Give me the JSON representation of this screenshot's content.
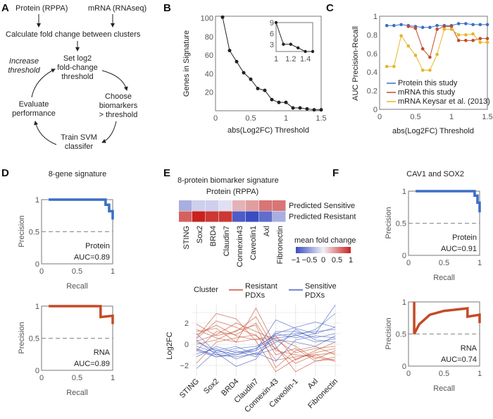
{
  "panel_labels": [
    "A",
    "B",
    "C",
    "D",
    "E",
    "F"
  ],
  "A": {
    "protein": "Protein (RPPA)",
    "mrna": "mRNA (RNAseq)",
    "calc": "Calculate fold change between clusters",
    "set1": "Set log2",
    "set2": "fold-change",
    "set3": "threshold",
    "choose1": "Choose",
    "choose2": "biomarkers",
    "choose3": "> threshold",
    "train1": "Train SVM",
    "train2": "classifer",
    "eval1": "Evaluate",
    "eval2": "performance",
    "inc1": "Increase",
    "inc2": "threshold"
  },
  "chart_data": [
    {
      "id": "B",
      "type": "line",
      "xlabel": "abs(Log2FC) Threshold",
      "ylabel": "Genes in Signature",
      "xlim": [
        0,
        1.5
      ],
      "ylim": [
        0,
        100
      ],
      "xticks": [
        "0",
        "0.5",
        "1",
        "1.5"
      ],
      "yticks": [
        "20",
        "40",
        "60",
        "80",
        "100"
      ],
      "x": [
        0.1,
        0.2,
        0.3,
        0.4,
        0.5,
        0.6,
        0.7,
        0.8,
        0.9,
        1.0,
        1.1,
        1.2,
        1.3,
        1.4,
        1.5
      ],
      "values": [
        101,
        65,
        53,
        41,
        34,
        24,
        22,
        12,
        9,
        9,
        3,
        3,
        2,
        1,
        1
      ],
      "inset": {
        "xlim": [
          1,
          1.5
        ],
        "ylim": [
          1,
          9
        ],
        "xticks": [
          "1",
          "1.2",
          "1.4"
        ],
        "yticks": [
          "3",
          "6",
          "9"
        ],
        "x": [
          1.0,
          1.1,
          1.2,
          1.3,
          1.4,
          1.5
        ],
        "values": [
          9,
          3,
          3,
          2,
          1,
          1
        ]
      }
    },
    {
      "id": "C",
      "type": "line",
      "xlabel": "abs(Log2FC) Threshold",
      "ylabel": "AUC Precision-Recall",
      "xlim": [
        0,
        1.5
      ],
      "ylim": [
        0,
        1
      ],
      "xticks": [
        "0",
        "0.5",
        "1",
        "1.5"
      ],
      "yticks": [
        "0",
        "0.2",
        "0.4",
        "0.6",
        "0.8",
        "1"
      ],
      "legend": "bottom-right",
      "series": [
        {
          "name": "Protein this study",
          "color": "#3b6fc4",
          "x": [
            0.1,
            0.2,
            0.3,
            0.4,
            0.5,
            0.6,
            0.7,
            0.8,
            0.9,
            1.0,
            1.1,
            1.2,
            1.3,
            1.4,
            1.5
          ],
          "values": [
            0.9,
            0.9,
            0.91,
            0.9,
            0.89,
            0.88,
            0.88,
            0.9,
            0.9,
            0.9,
            0.92,
            0.92,
            0.91,
            0.91,
            0.91
          ]
        },
        {
          "name": "mRNA this study",
          "color": "#c44a28",
          "x": [
            0.4,
            0.5,
            0.6,
            0.7,
            0.8,
            0.9,
            1.0,
            1.1,
            1.2,
            1.3,
            1.4,
            1.5
          ],
          "values": [
            0.89,
            0.87,
            0.65,
            0.56,
            0.86,
            0.89,
            0.89,
            0.74,
            0.74,
            0.74,
            0.76,
            0.76
          ]
        },
        {
          "name": "mRNA Keysar et al. (2013)",
          "color": "#e8b428",
          "x": [
            0.1,
            0.2,
            0.3,
            0.4,
            0.5,
            0.6,
            0.7,
            0.8,
            0.9,
            1.0,
            1.1,
            1.2,
            1.3,
            1.4,
            1.5
          ],
          "values": [
            0.46,
            0.46,
            0.79,
            0.68,
            0.58,
            0.42,
            0.42,
            0.59,
            0.86,
            0.86,
            0.8,
            0.8,
            0.81,
            0.72,
            0.72
          ]
        }
      ]
    },
    {
      "id": "D",
      "type": "line",
      "title": "8-gene signature",
      "xlabel": "Recall",
      "ylabel": "Precision",
      "xlim": [
        0,
        1
      ],
      "ylim": [
        0,
        1
      ],
      "xticks": [
        "0",
        "0.5",
        "1"
      ],
      "yticks": [
        "0",
        "0.5",
        "1"
      ],
      "curves": [
        {
          "label": "Protein",
          "auc": "AUC=0.89",
          "color": "#3b6fc4",
          "x": [
            0.1,
            0.9,
            0.9,
            0.95,
            0.95,
            1,
            1
          ],
          "values": [
            1,
            1,
            0.92,
            0.92,
            0.82,
            0.82,
            0.69
          ]
        },
        {
          "label": "RNA",
          "auc": "AUC=0.89",
          "color": "#c44a28",
          "x": [
            0.1,
            0.83,
            0.83,
            1,
            1
          ],
          "values": [
            1,
            1,
            0.83,
            0.85,
            0.72
          ]
        }
      ]
    },
    {
      "id": "F",
      "type": "line",
      "title": "CAV1 and SOX2",
      "xlabel": "Recall",
      "ylabel": "Precision",
      "xlim": [
        0,
        1
      ],
      "ylim": [
        0,
        1
      ],
      "xticks": [
        "0",
        "0.5",
        "1"
      ],
      "yticks": [
        "0",
        "0.5",
        "1"
      ],
      "curves": [
        {
          "label": "Protein",
          "auc": "AUC=0.91",
          "color": "#3b6fc4",
          "x": [
            0.1,
            0.93,
            0.93,
            0.97,
            0.97,
            1,
            1
          ],
          "values": [
            1,
            1,
            0.93,
            0.93,
            0.82,
            0.82,
            0.67
          ]
        },
        {
          "label": "RNA",
          "auc": "AUC=0.74",
          "color": "#c44a28",
          "x": [
            0.08,
            0.08,
            0.15,
            0.3,
            0.5,
            0.83,
            0.83,
            1,
            1
          ],
          "values": [
            1,
            0.5,
            0.65,
            0.8,
            0.86,
            0.9,
            0.77,
            0.8,
            0.67
          ]
        }
      ]
    },
    {
      "id": "E-heatmap",
      "type": "heatmap",
      "title": "8-protein biomarker signature",
      "subtitle": "Protein (RPPA)",
      "columns": [
        "STING",
        "Sox2",
        "BRD4",
        "Claudin7",
        "Connexin43",
        "Caveolin1",
        "Axl",
        "Fibronectin"
      ],
      "rows": [
        "Predicted Sensitive",
        "Predicted Resistant"
      ],
      "values": [
        [
          -0.4,
          -0.2,
          -0.2,
          -0.1,
          0.3,
          0.4,
          0.6,
          0.6
        ],
        [
          0.7,
          1.0,
          0.9,
          0.9,
          -0.9,
          -1.0,
          -0.8,
          -0.4
        ]
      ],
      "colorbar": {
        "label": "mean fold change",
        "ticks": [
          "−1",
          "−0.5",
          "0",
          "0.5",
          "1"
        ],
        "range": [
          -1,
          1
        ],
        "low": "#3b4cc0",
        "mid": "#f2f0f7",
        "high": "#c8231e"
      }
    },
    {
      "id": "E-parallel",
      "type": "line",
      "ylabel": "Log2FC",
      "categories": [
        "STING",
        "Sox2",
        "BRD4",
        "Claudin7",
        "Connexin-43",
        "Caveolin-1",
        "Axl",
        "Fibronectin"
      ],
      "yticks": [
        "−2",
        "0",
        "2"
      ],
      "ylim": [
        -3,
        3.8
      ],
      "legend_title": "Cluster",
      "series": [
        {
          "name": "Resistant PDXs",
          "color": "#c9553a",
          "lines": [
            [
              1.9,
              0.8,
              1.2,
              2.6,
              -0.6,
              -1.0,
              -1.2,
              -1.6
            ],
            [
              0.6,
              2.9,
              2.4,
              0.3,
              -2.6,
              -1.4,
              -0.8,
              -0.4
            ],
            [
              1.2,
              1.5,
              0.2,
              3.4,
              -0.2,
              -2.6,
              -1.6,
              -1.2
            ],
            [
              0.3,
              0.9,
              2.0,
              1.2,
              0.4,
              -0.8,
              -0.4,
              -0.2
            ],
            [
              -1.8,
              0.2,
              0.6,
              0.9,
              -1.5,
              -1.2,
              -1.0,
              -1.6
            ],
            [
              0.9,
              1.8,
              0.8,
              0.4,
              0.6,
              -0.2,
              -1.4,
              -0.6
            ],
            [
              0.0,
              0.4,
              1.3,
              1.8,
              -2.2,
              -0.6,
              -0.2,
              -1.0
            ],
            [
              1.4,
              0.6,
              0.2,
              0.5,
              0.8,
              -1.5,
              -0.6,
              0.2
            ],
            [
              -0.6,
              1.2,
              0.9,
              2.0,
              -1.0,
              -0.4,
              -1.6,
              -1.4
            ],
            [
              0.5,
              2.2,
              1.6,
              0.8,
              -0.4,
              -1.8,
              -1.0,
              -0.8
            ]
          ]
        },
        {
          "name": "Sensitive PDXs",
          "color": "#4a63c4",
          "lines": [
            [
              -0.6,
              -1.2,
              -0.8,
              -0.6,
              2.3,
              1.5,
              1.0,
              3.7
            ],
            [
              -0.2,
              -0.8,
              -2.1,
              -1.4,
              1.0,
              1.6,
              2.1,
              1.6
            ],
            [
              -2.3,
              -0.6,
              -1.0,
              -0.4,
              0.6,
              0.8,
              1.4,
              2.9
            ],
            [
              0.4,
              -1.0,
              -0.6,
              -1.2,
              1.2,
              1.2,
              0.6,
              1.0
            ],
            [
              -0.9,
              -0.4,
              -1.4,
              -0.8,
              -1.6,
              0.4,
              0.8,
              0.6
            ],
            [
              1.0,
              -0.8,
              -0.4,
              -0.2,
              0.8,
              1.0,
              1.2,
              1.4
            ],
            [
              -0.4,
              -1.2,
              -1.0,
              -0.6,
              0.4,
              0.2,
              -0.2,
              0.8
            ],
            [
              0.2,
              -0.6,
              -0.2,
              -1.0,
              -0.4,
              1.4,
              0.4,
              0.2
            ],
            [
              -1.2,
              -0.2,
              -0.8,
              -0.4,
              1.0,
              0.6,
              1.0,
              1.6
            ],
            [
              -0.5,
              -1.0,
              -1.2,
              -0.9,
              0.2,
              0.9,
              0.2,
              0.5
            ]
          ]
        }
      ]
    }
  ]
}
